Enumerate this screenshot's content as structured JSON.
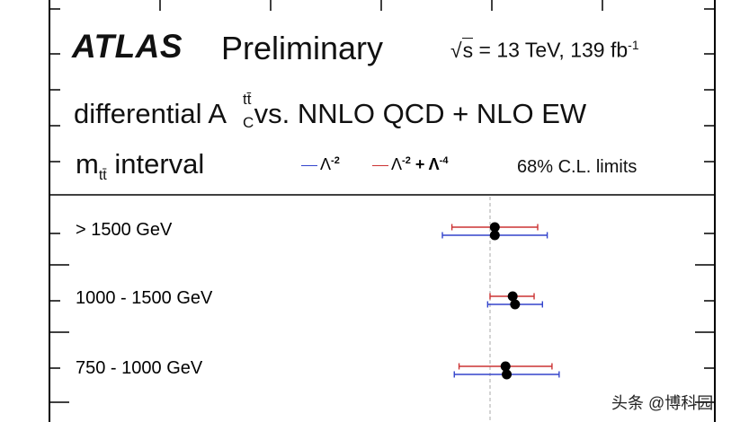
{
  "header": {
    "experiment": "ATLAS",
    "status": "Preliminary",
    "energy_prefix": "√",
    "energy_s": "s",
    "energy_value": " = 13 TeV, 139 fb",
    "energy_exp": "-1",
    "title_prefix": "differential A",
    "title_sup": "tt̄",
    "title_sub": "C",
    "title_suffix": " vs. NNLO QCD + NLO EW",
    "subtitle_m": "m",
    "subtitle_sub": "tt̄",
    "subtitle_rest": " interval"
  },
  "legend": {
    "blue_label": "Λ",
    "blue_exp": "-2",
    "red_label": "Λ",
    "red_exp": "-2",
    "red_plus": " + Λ",
    "red_exp2": "-4",
    "cl_label": "68% C.L. limits"
  },
  "colors": {
    "blue": "#3344cc",
    "red": "#cc3333",
    "frame": "#000000",
    "reference_line": "#aaaaaa"
  },
  "chart_data": {
    "type": "scatter",
    "orientation": "horizontal-intervals",
    "x_range": [
      -1,
      1
    ],
    "reference_x": 0,
    "categories": [
      "> 1500 GeV",
      "1000 - 1500 GeV",
      "750 - 1000 GeV"
    ],
    "series": [
      {
        "name": "Λ-2",
        "color": "#3344cc",
        "points": [
          {
            "category": "> 1500 GeV",
            "center": 0.02,
            "low": -0.2,
            "high": 0.24
          },
          {
            "category": "1000 - 1500 GeV",
            "center": 0.105,
            "low": -0.01,
            "high": 0.22
          },
          {
            "category": "750 - 1000 GeV",
            "center": 0.07,
            "low": -0.15,
            "high": 0.29
          }
        ]
      },
      {
        "name": "Λ-2 + Λ-4",
        "color": "#cc3333",
        "points": [
          {
            "category": "> 1500 GeV",
            "center": 0.02,
            "low": -0.16,
            "high": 0.2
          },
          {
            "category": "1000 - 1500 GeV",
            "center": 0.095,
            "low": 0.0,
            "high": 0.185
          },
          {
            "category": "750 - 1000 GeV",
            "center": 0.065,
            "low": -0.13,
            "high": 0.26
          }
        ]
      }
    ]
  },
  "watermark": "头条 @博科园"
}
